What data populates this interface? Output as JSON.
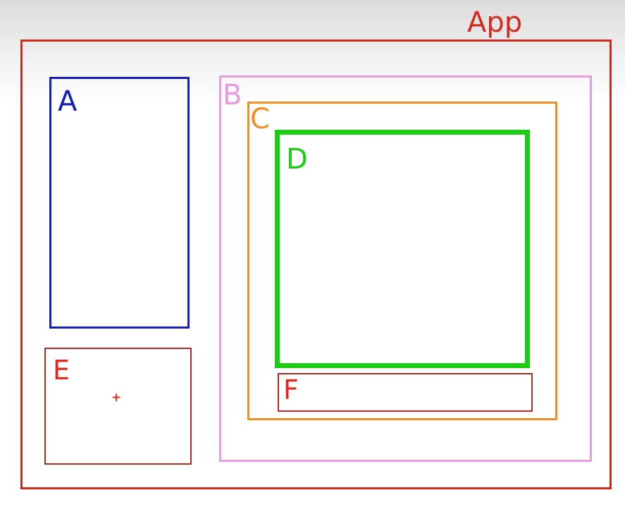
{
  "diagram": {
    "app": {
      "label": "App",
      "color": "#d42a1e"
    },
    "boxes": {
      "a": {
        "label": "A",
        "color": "#1520b5"
      },
      "b": {
        "label": "B",
        "color": "#e99be2"
      },
      "c": {
        "label": "C",
        "color": "#ef9027"
      },
      "d": {
        "label": "D",
        "color": "#1bce14"
      },
      "e": {
        "label": "E",
        "color": "#b42a28",
        "label_color": "#e4261b"
      },
      "f": {
        "label": "F",
        "color": "#a92f26",
        "label_color": "#e4261b"
      }
    },
    "cursor": {
      "glyph": "+",
      "color": "#e4261b",
      "icon": "crosshair-cursor-icon"
    }
  }
}
